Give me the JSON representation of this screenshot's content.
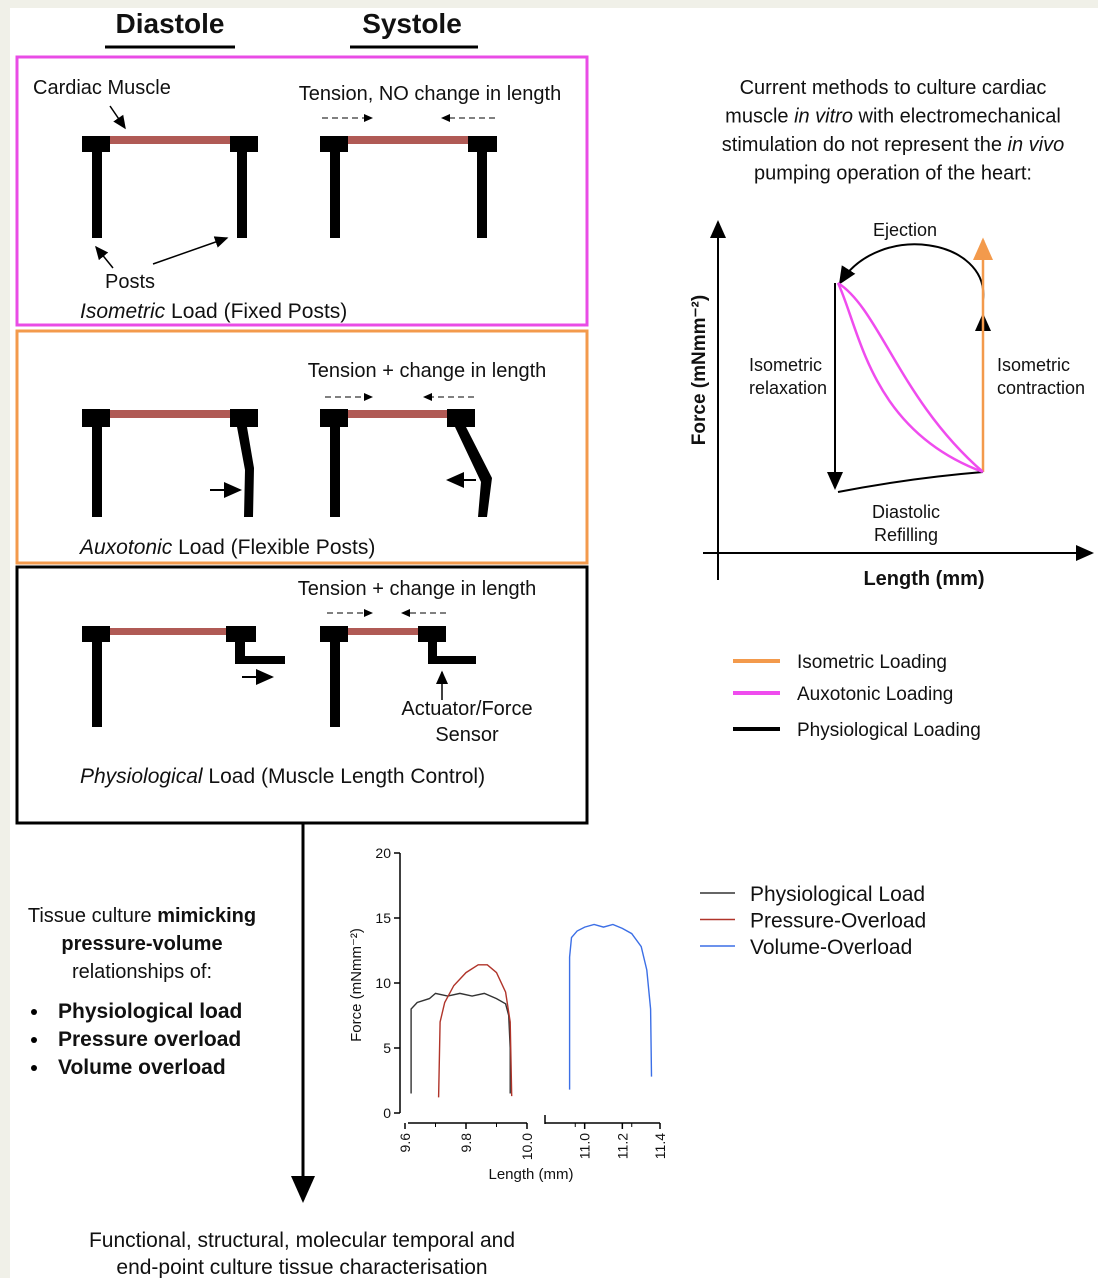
{
  "headers": {
    "diastole": "Diastole",
    "systole": "Systole"
  },
  "isometric_panel": {
    "muscle_label": "Cardiac Muscle",
    "tension_label": "Tension, NO change in length",
    "posts_label": "Posts",
    "caption_italic": "Isometric",
    "caption": " Load (Fixed Posts)"
  },
  "auxotonic_panel": {
    "tension_label": "Tension + change in length",
    "caption_italic": "Auxotonic",
    "caption": " Load (Flexible Posts)"
  },
  "physiological_panel": {
    "tension_label": "Tension + change in length",
    "actuator_label": [
      "Actuator/Force",
      "Sensor"
    ],
    "caption_italic": "Physiological",
    "caption": " Load (Muscle Length Control)"
  },
  "description": {
    "lines": [
      [
        {
          "text": "Current methods to culture cardiac"
        }
      ],
      [
        {
          "text": "muscle "
        },
        {
          "text": "in vitro",
          "italic": true
        },
        {
          "text": " with electromechanical"
        }
      ],
      [
        {
          "text": "stimulation do not represent the "
        },
        {
          "text": "in vivo",
          "italic": true
        }
      ],
      [
        {
          "text": "pumping operation of the heart:"
        }
      ]
    ]
  },
  "pv_diagram": {
    "y_label": "Force (mNmm⁻²)",
    "x_label": "Length (mm)",
    "ejection": "Ejection",
    "relaxation": [
      "Isometric",
      "relaxation"
    ],
    "contraction": [
      "Isometric",
      "contraction"
    ],
    "refilling": [
      "Diastolic",
      "Refilling"
    ],
    "legend": [
      {
        "name": "Isometric Loading",
        "color": "#f39a4c"
      },
      {
        "name": "Auxotonic Loading",
        "color": "#ef4cee"
      },
      {
        "name": "Physiological Loading",
        "color": "#000000"
      }
    ]
  },
  "culture_text": {
    "lines": [
      [
        {
          "text": "Tissue culture "
        },
        {
          "text": "mimicking",
          "bold": true
        }
      ],
      [
        {
          "text": "pressure-volume",
          "bold": true
        }
      ],
      [
        {
          "text": "relationships of:"
        }
      ]
    ],
    "items": [
      "Physiological load",
      "Pressure overload",
      "Volume overload"
    ]
  },
  "chart_data": {
    "type": "line",
    "y_label": "Force (mNmm⁻²)",
    "x_label": "Length (mm)",
    "ylim": [
      0,
      20
    ],
    "yticks": [
      0,
      5,
      10,
      15,
      20
    ],
    "x_segments": [
      {
        "xlim": [
          9.6,
          10.0
        ],
        "xticks": [
          9.6,
          9.8,
          {
            "value": 10,
            "label": "10.0"
          }
        ]
      },
      {
        "xlim": [
          10.8,
          11.4
        ],
        "xticks": [
          {
            "value": 11,
            "label": "11.0"
          },
          11.2,
          11.4
        ]
      }
    ],
    "series": [
      {
        "name": "Physiological Load",
        "color": "#333333",
        "segment": 0,
        "x": [
          9.62,
          9.62,
          9.64,
          9.68,
          9.7,
          9.74,
          9.78,
          9.82,
          9.86,
          9.9,
          9.93,
          9.94,
          9.945,
          9.945
        ],
        "y": [
          1.5,
          8,
          8.5,
          8.8,
          9.2,
          9,
          9.2,
          9,
          9.2,
          8.8,
          8.4,
          7.5,
          5,
          1.5
        ]
      },
      {
        "name": "Pressure-Overload",
        "color": "#b0342a",
        "segment": 0,
        "x": [
          9.71,
          9.715,
          9.73,
          9.76,
          9.8,
          9.84,
          9.87,
          9.9,
          9.93,
          9.945,
          9.95
        ],
        "y": [
          1.2,
          7,
          8.5,
          9.8,
          10.8,
          11.4,
          11.4,
          10.8,
          9.3,
          7,
          1.3
        ]
      },
      {
        "name": "Volume-Overload",
        "color": "#3c6fe6",
        "segment": 1,
        "x": [
          10.92,
          10.92,
          10.93,
          10.96,
          11.0,
          11.05,
          11.1,
          11.15,
          11.2,
          11.25,
          11.3,
          11.33,
          11.35,
          11.355
        ],
        "y": [
          1.8,
          12,
          13.5,
          14,
          14.3,
          14.5,
          14.3,
          14.5,
          14.2,
          13.8,
          12.8,
          11,
          8,
          2.8
        ]
      }
    ]
  },
  "outcome": [
    "Functional, structural, molecular temporal and",
    "end-point culture tissue characterisation"
  ]
}
